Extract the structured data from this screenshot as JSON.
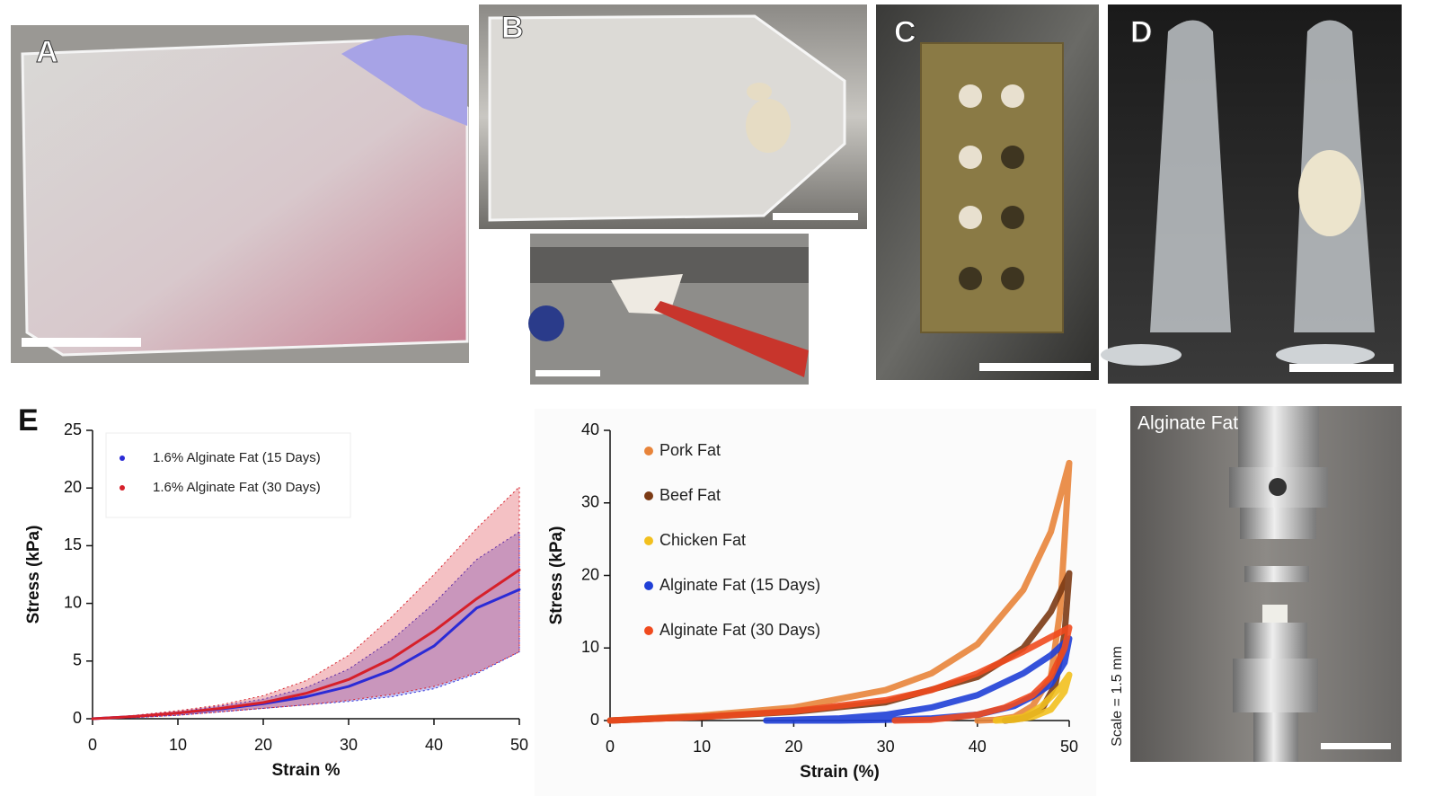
{
  "panel_labels": [
    "A",
    "B",
    "C",
    "D",
    "E"
  ],
  "photo_texts": {
    "title": "Alginate Fat",
    "scale": "Scale = 1.5 mm"
  },
  "chart_data": [
    {
      "type": "line",
      "x_label": "Strain %",
      "y_label": "Stress (kPa)",
      "x": [
        0,
        5,
        10,
        15,
        20,
        25,
        30,
        35,
        40,
        45,
        50
      ],
      "xlim": [
        0,
        50
      ],
      "xticks": [
        0,
        10,
        20,
        30,
        40,
        50
      ],
      "ylim": [
        0,
        25
      ],
      "yticks": [
        0,
        5,
        10,
        15,
        20,
        25
      ],
      "legend": "upper left",
      "series": [
        {
          "name": "1.6% Alginate Fat (15 Days)",
          "color": "#2b2bd6",
          "values": [
            0,
            0.2,
            0.5,
            0.85,
            1.3,
            1.9,
            2.8,
            4.2,
            6.3,
            9.6,
            11.2
          ],
          "upper": [
            0,
            0.25,
            0.6,
            1.1,
            1.7,
            2.7,
            4.3,
            6.8,
            10.0,
            13.8,
            16.2
          ],
          "lower": [
            0,
            0.1,
            0.3,
            0.6,
            0.9,
            1.2,
            1.5,
            1.9,
            2.6,
            3.9,
            5.8
          ]
        },
        {
          "name": "1.6% Alginate Fat (30 Days)",
          "color": "#d6202a",
          "values": [
            0,
            0.2,
            0.5,
            0.9,
            1.4,
            2.2,
            3.4,
            5.2,
            7.6,
            10.4,
            12.9
          ],
          "upper": [
            0,
            0.3,
            0.7,
            1.2,
            2.0,
            3.3,
            5.5,
            8.8,
            12.5,
            16.5,
            20.1
          ],
          "lower": [
            0,
            0.1,
            0.3,
            0.6,
            0.9,
            1.2,
            1.6,
            2.1,
            2.8,
            4.0,
            5.8
          ]
        }
      ]
    },
    {
      "type": "line",
      "x_label": "Strain (%)",
      "y_label": "Stress (kPa)",
      "xlim": [
        0,
        50
      ],
      "xticks": [
        0,
        10,
        20,
        30,
        40,
        50
      ],
      "ylim": [
        0,
        40
      ],
      "yticks": [
        0,
        10,
        20,
        30,
        40
      ],
      "legend": "upper left",
      "series": [
        {
          "name": "Pork Fat",
          "color": "#e8843a",
          "x": [
            0,
            10,
            20,
            30,
            35,
            40,
            45,
            48,
            50,
            49.5,
            49,
            48,
            46,
            44,
            42,
            40
          ],
          "values": [
            0,
            0.7,
            1.8,
            4.2,
            6.5,
            10.5,
            18,
            26,
            35.5,
            25,
            15,
            6,
            2,
            0.5,
            0.1,
            0
          ]
        },
        {
          "name": "Beef Fat",
          "color": "#7b3a14",
          "x": [
            0,
            10,
            20,
            30,
            40,
            45,
            48,
            50,
            49.5,
            48.5,
            47,
            45,
            43
          ],
          "values": [
            0,
            0.5,
            1.2,
            2.5,
            6,
            10,
            15,
            20.3,
            12,
            5,
            1.5,
            0.3,
            0
          ]
        },
        {
          "name": "Chicken Fat",
          "color": "#f2c01e",
          "x": [
            42,
            45,
            47,
            49,
            50,
            49.5,
            48,
            46,
            44,
            42
          ],
          "values": [
            0,
            0.5,
            2,
            4.5,
            6.3,
            4,
            1.5,
            0.5,
            0.1,
            0
          ]
        },
        {
          "name": "Alginate Fat (15 Days)",
          "color": "#1f3fd6",
          "x": [
            17,
            25,
            30,
            35,
            40,
            45,
            48,
            50,
            49.5,
            48,
            46,
            44,
            40,
            35,
            30,
            25,
            17
          ],
          "values": [
            0,
            0.3,
            0.8,
            1.8,
            3.5,
            6.5,
            9,
            11.3,
            8,
            5,
            3.3,
            2,
            0.8,
            0.3,
            0.1,
            0,
            0
          ]
        },
        {
          "name": "Alginate Fat (30 Days)",
          "color": "#f04a1e",
          "x": [
            0,
            10,
            20,
            30,
            35,
            40,
            45,
            48,
            50,
            49.5,
            48,
            46,
            43,
            40,
            35,
            31
          ],
          "values": [
            0,
            0.5,
            1.3,
            2.8,
            4.2,
            6.5,
            9.5,
            11.5,
            12.8,
            10,
            6,
            3.5,
            1.8,
            0.8,
            0.1,
            0
          ]
        }
      ]
    }
  ]
}
